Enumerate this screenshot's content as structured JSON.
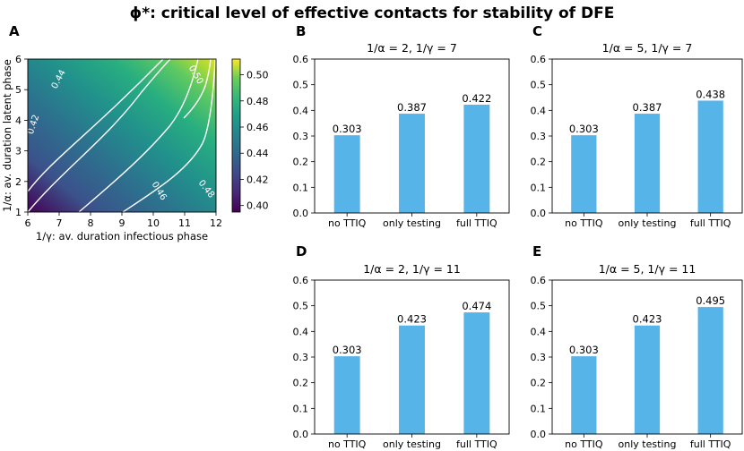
{
  "figure": {
    "title": "ϕ*: critical level of effective contacts for stability of DFE"
  },
  "chart_data": [
    {
      "panel": "A",
      "type": "heatmap",
      "xlabel": "1/γ: av. duration infectious phase",
      "ylabel": "1/α: av. duration latent phase",
      "xlim": [
        6,
        12
      ],
      "ylim": [
        1,
        6
      ],
      "xticks": [
        "6",
        "7",
        "8",
        "9",
        "10",
        "11",
        "12"
      ],
      "yticks": [
        "1",
        "2",
        "3",
        "4",
        "5",
        "6"
      ],
      "colormap": "viridis",
      "colorbar": {
        "range": [
          0.395,
          0.512
        ],
        "ticks": [
          "0.40",
          "0.42",
          "0.44",
          "0.46",
          "0.48",
          "0.50"
        ]
      },
      "contour_levels": [
        "0.42",
        "0.44",
        "0.46",
        "0.48",
        "0.50"
      ]
    },
    {
      "panel": "B",
      "type": "bar",
      "title": "1/α = 2, 1/γ = 7",
      "categories": [
        "no TTIQ",
        "only testing",
        "full TTIQ"
      ],
      "values": [
        0.303,
        0.387,
        0.422
      ],
      "labels": [
        "0.303",
        "0.387",
        "0.422"
      ],
      "ylim": [
        0,
        0.6
      ],
      "yticks": [
        "0.0",
        "0.1",
        "0.2",
        "0.3",
        "0.4",
        "0.5",
        "0.6"
      ],
      "color": "#56b4e9"
    },
    {
      "panel": "C",
      "type": "bar",
      "title": "1/α = 5, 1/γ = 7",
      "categories": [
        "no TTIQ",
        "only testing",
        "full TTIQ"
      ],
      "values": [
        0.303,
        0.387,
        0.438
      ],
      "labels": [
        "0.303",
        "0.387",
        "0.438"
      ],
      "ylim": [
        0,
        0.6
      ],
      "yticks": [
        "0.0",
        "0.1",
        "0.2",
        "0.3",
        "0.4",
        "0.5",
        "0.6"
      ],
      "color": "#56b4e9"
    },
    {
      "panel": "D",
      "type": "bar",
      "title": "1/α = 2, 1/γ = 11",
      "categories": [
        "no TTIQ",
        "only testing",
        "full TTIQ"
      ],
      "values": [
        0.303,
        0.423,
        0.474
      ],
      "labels": [
        "0.303",
        "0.423",
        "0.474"
      ],
      "ylim": [
        0,
        0.6
      ],
      "yticks": [
        "0.0",
        "0.1",
        "0.2",
        "0.3",
        "0.4",
        "0.5",
        "0.6"
      ],
      "color": "#56b4e9"
    },
    {
      "panel": "E",
      "type": "bar",
      "title": "1/α = 5, 1/γ = 11",
      "categories": [
        "no TTIQ",
        "only testing",
        "full TTIQ"
      ],
      "values": [
        0.303,
        0.423,
        0.495
      ],
      "labels": [
        "0.303",
        "0.423",
        "0.495"
      ],
      "ylim": [
        0,
        0.6
      ],
      "yticks": [
        "0.0",
        "0.1",
        "0.2",
        "0.3",
        "0.4",
        "0.5",
        "0.6"
      ],
      "color": "#56b4e9"
    }
  ]
}
